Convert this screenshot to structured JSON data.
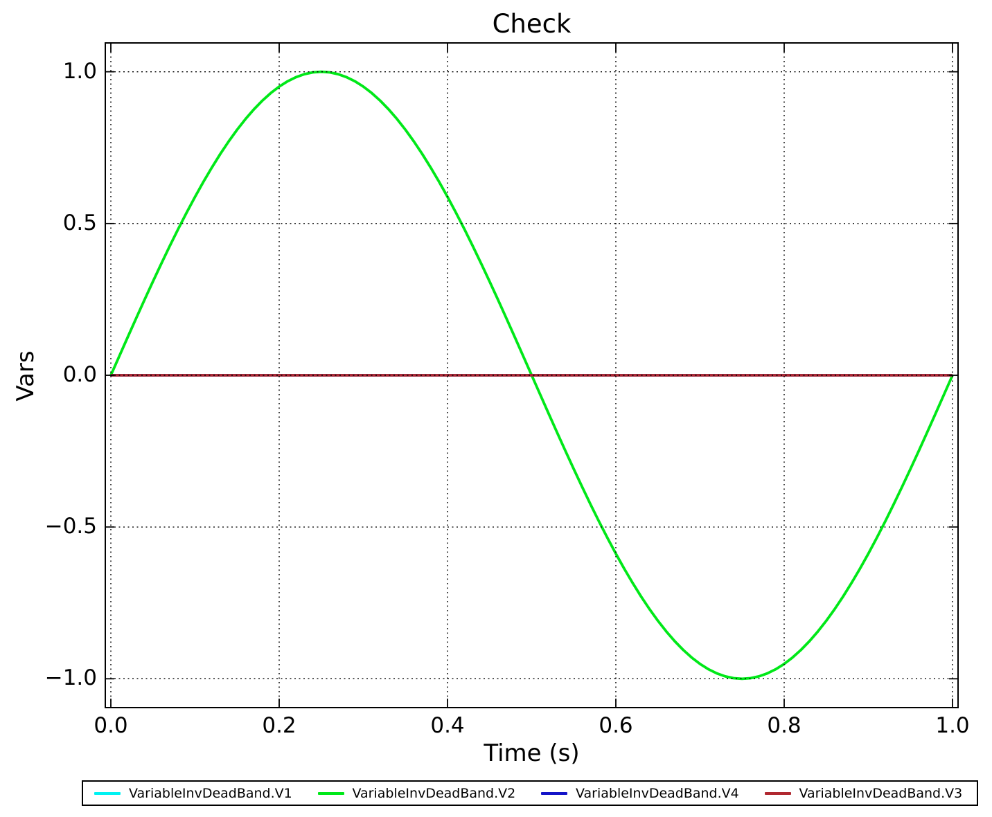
{
  "chart_data": {
    "type": "line",
    "title": "Check",
    "xlabel": "Time (s)",
    "ylabel": "Vars",
    "xlim": [
      0.0,
      1.0
    ],
    "ylim": [
      -1.1,
      1.1
    ],
    "grid": true,
    "grid_style": "dotted",
    "grid_color": "#000000",
    "legend_position": "bottom",
    "x_ticks": [
      {
        "label": "0.0",
        "value": 0.0
      },
      {
        "label": "0.2",
        "value": 0.2
      },
      {
        "label": "0.4",
        "value": 0.4
      },
      {
        "label": "0.6",
        "value": 0.6
      },
      {
        "label": "0.8",
        "value": 0.8
      },
      {
        "label": "1.0",
        "value": 1.0
      }
    ],
    "y_ticks": [
      {
        "label": "1.0",
        "value": 1.0
      },
      {
        "label": "0.5",
        "value": 0.5
      },
      {
        "label": "0.0",
        "value": 0.0
      },
      {
        "label": "−0.5",
        "value": -0.5
      },
      {
        "label": "−1.0",
        "value": -1.0
      }
    ],
    "x_start": 0.0,
    "x_step": 0.01,
    "x_range": [
      0.0,
      1.0
    ],
    "series": [
      {
        "name": "VariableInvDeadBand.V1",
        "color": "#00F2F2",
        "constant": 0
      },
      {
        "name": "VariableInvDeadBand.V2",
        "color": "#00E818",
        "values": [
          0.0,
          0.0628,
          0.1253,
          0.1874,
          0.2487,
          0.309,
          0.3681,
          0.4258,
          0.4818,
          0.5358,
          0.5878,
          0.6374,
          0.6845,
          0.729,
          0.7705,
          0.809,
          0.8443,
          0.8763,
          0.9048,
          0.9298,
          0.9511,
          0.9686,
          0.9823,
          0.9921,
          0.998,
          1.0,
          0.998,
          0.9921,
          0.9823,
          0.9686,
          0.9511,
          0.9298,
          0.9048,
          0.8763,
          0.8443,
          0.809,
          0.7705,
          0.729,
          0.6845,
          0.6374,
          0.5878,
          0.5358,
          0.4818,
          0.4258,
          0.3681,
          0.309,
          0.2487,
          0.1874,
          0.1253,
          0.0628,
          0.0,
          -0.0628,
          -0.1253,
          -0.1874,
          -0.2487,
          -0.309,
          -0.3681,
          -0.4258,
          -0.4818,
          -0.5358,
          -0.5878,
          -0.6374,
          -0.6845,
          -0.729,
          -0.7705,
          -0.809,
          -0.8443,
          -0.8763,
          -0.9048,
          -0.9298,
          -0.9511,
          -0.9686,
          -0.9823,
          -0.9921,
          -0.998,
          -1.0,
          -0.998,
          -0.9921,
          -0.9823,
          -0.9686,
          -0.9511,
          -0.9298,
          -0.9048,
          -0.8763,
          -0.8443,
          -0.809,
          -0.7705,
          -0.729,
          -0.6845,
          -0.6374,
          -0.5878,
          -0.5358,
          -0.4818,
          -0.4258,
          -0.3681,
          -0.309,
          -0.2487,
          -0.1874,
          -0.1253,
          -0.0628,
          0.0
        ]
      },
      {
        "name": "VariableInvDeadBand.V4",
        "color": "#1414C8",
        "constant": 0
      },
      {
        "name": "VariableInvDeadBand.V3",
        "color": "#B02830",
        "constant": 0
      }
    ]
  }
}
